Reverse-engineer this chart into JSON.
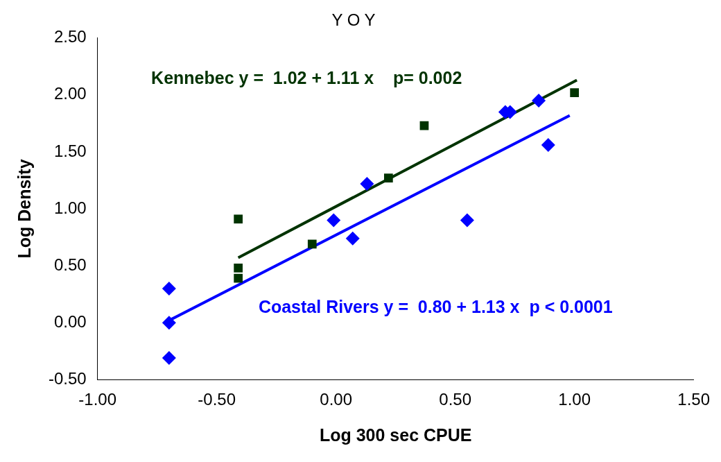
{
  "chart_data": {
    "type": "scatter",
    "title": "Y O Y",
    "xlabel": "Log 300 sec CPUE",
    "ylabel": "Log Density",
    "xlim": [
      -1.0,
      1.5
    ],
    "xticks": [
      {
        "value": -1.0,
        "label": "-1.00"
      },
      {
        "value": -0.5,
        "label": "-0.50"
      },
      {
        "value": 0,
        "label": "0.00"
      },
      {
        "value": 0.5,
        "label": "0.50"
      },
      {
        "value": 1.0,
        "label": "1.00"
      },
      {
        "value": 1.5,
        "label": "1.50"
      }
    ],
    "ylim": [
      -0.5,
      2.5
    ],
    "yticks": [
      {
        "value": -0.5,
        "label": "-0.50"
      },
      {
        "value": 0,
        "label": "0.00"
      },
      {
        "value": 0.5,
        "label": "0.50"
      },
      {
        "value": 1.0,
        "label": "1.00"
      },
      {
        "value": 1.5,
        "label": "1.50"
      },
      {
        "value": 2.0,
        "label": "2.00"
      },
      {
        "value": 2.5,
        "label": "2.50"
      }
    ],
    "grid": false,
    "legend": false,
    "series": [
      {
        "type": "scatter",
        "marker": "square",
        "color": "#003300",
        "x": [
          -0.41,
          -0.41,
          -0.41,
          -0.1,
          0.22,
          0.37,
          1.0
        ],
        "values": [
          0.91,
          0.48,
          0.39,
          0.69,
          1.27,
          1.73,
          2.02
        ]
      },
      {
        "type": "scatter",
        "marker": "diamond",
        "color": "#0000ff",
        "x": [
          -0.7,
          -0.7,
          -0.7,
          -0.01,
          0.07,
          0.13,
          0.55,
          0.71,
          0.73,
          0.85,
          0.89
        ],
        "values": [
          0.3,
          0.0,
          -0.31,
          0.9,
          0.74,
          1.22,
          0.9,
          1.85,
          1.85,
          1.95,
          1.56
        ]
      },
      {
        "type": "line",
        "color": "#003300",
        "x": [
          -0.41,
          1.01
        ],
        "values": [
          0.57,
          2.13
        ]
      },
      {
        "type": "line",
        "color": "#0000ff",
        "x": [
          -0.7,
          0.98
        ],
        "values": [
          0.02,
          1.82
        ]
      }
    ],
    "annotations": [
      "Kennebec y =  1.02 + 1.11 x    p= 0.002",
      "Coastal Rivers y =  0.80 + 1.13 x  p < 0.0001"
    ]
  }
}
